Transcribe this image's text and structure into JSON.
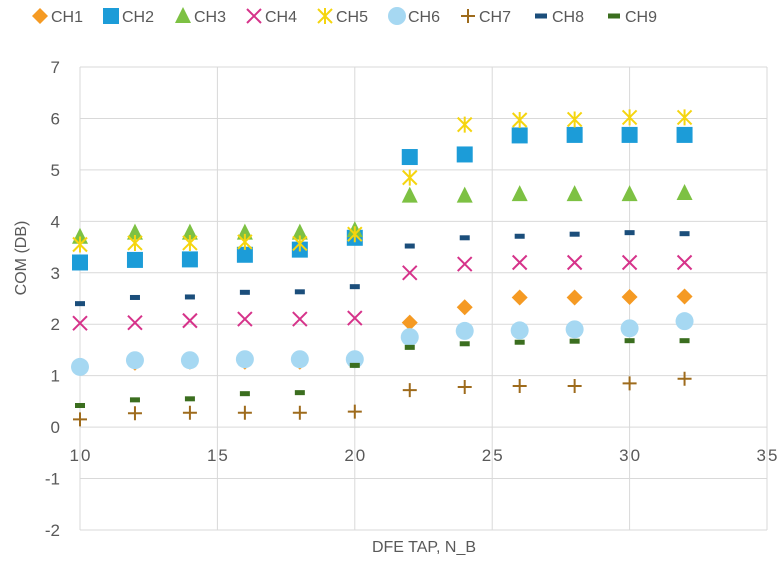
{
  "chart_data": {
    "type": "scatter",
    "title": "",
    "xlabel": "DFE TAP, N_B",
    "ylabel": "COM (DB)",
    "xlim": [
      10,
      35
    ],
    "ylim": [
      -2,
      7
    ],
    "x_ticks": [
      10,
      15,
      20,
      25,
      30,
      35
    ],
    "y_ticks": [
      -2,
      -1,
      0,
      1,
      2,
      3,
      4,
      5,
      6,
      7
    ],
    "x_tick_labels": [
      "10",
      "15",
      "20",
      "25",
      "30",
      "35"
    ],
    "y_tick_labels": [
      "-2",
      "-1",
      "0",
      "1",
      "2",
      "3",
      "4",
      "5",
      "6",
      "7"
    ],
    "grid": true,
    "legend_position": "top",
    "x": [
      10,
      12,
      14,
      16,
      18,
      20,
      22,
      24,
      26,
      28,
      30,
      32
    ],
    "series": [
      {
        "name": "CH1",
        "marker": "diamond",
        "color": "#F59A23",
        "values": [
          1.15,
          1.25,
          1.27,
          1.27,
          1.27,
          1.3,
          2.03,
          2.33,
          2.52,
          2.52,
          2.53,
          2.54
        ]
      },
      {
        "name": "CH2",
        "marker": "square",
        "color": "#1C9CD8",
        "values": [
          3.2,
          3.25,
          3.26,
          3.35,
          3.45,
          3.68,
          5.25,
          5.3,
          5.67,
          5.68,
          5.68,
          5.68
        ]
      },
      {
        "name": "CH3",
        "marker": "triangle",
        "color": "#7DC143",
        "values": [
          3.7,
          3.78,
          3.78,
          3.78,
          3.78,
          3.83,
          4.5,
          4.5,
          4.53,
          4.53,
          4.53,
          4.55
        ]
      },
      {
        "name": "CH4",
        "marker": "x",
        "color": "#D6338A",
        "values": [
          2.02,
          2.03,
          2.07,
          2.1,
          2.1,
          2.12,
          3.0,
          3.17,
          3.2,
          3.2,
          3.2,
          3.2
        ]
      },
      {
        "name": "CH5",
        "marker": "star",
        "color": "#F5D50F",
        "values": [
          3.55,
          3.58,
          3.58,
          3.6,
          3.57,
          3.75,
          4.85,
          5.88,
          5.97,
          5.98,
          6.02,
          6.02
        ]
      },
      {
        "name": "CH6",
        "marker": "circle",
        "color": "#A6D8F2",
        "values": [
          1.17,
          1.3,
          1.3,
          1.32,
          1.32,
          1.32,
          1.75,
          1.87,
          1.88,
          1.9,
          1.92,
          2.06
        ]
      },
      {
        "name": "CH7",
        "marker": "plus",
        "color": "#9E6B1C",
        "values": [
          0.15,
          0.27,
          0.28,
          0.28,
          0.28,
          0.3,
          0.72,
          0.78,
          0.8,
          0.8,
          0.85,
          0.94
        ]
      },
      {
        "name": "CH8",
        "marker": "dash",
        "color": "#1B4E7B",
        "values": [
          2.4,
          2.52,
          2.53,
          2.62,
          2.63,
          2.73,
          3.52,
          3.68,
          3.71,
          3.75,
          3.78,
          3.76
        ]
      },
      {
        "name": "CH9",
        "marker": "dash",
        "color": "#3B6E1F",
        "values": [
          0.42,
          0.53,
          0.55,
          0.65,
          0.67,
          1.2,
          1.55,
          1.62,
          1.65,
          1.67,
          1.68,
          1.68
        ]
      }
    ]
  }
}
